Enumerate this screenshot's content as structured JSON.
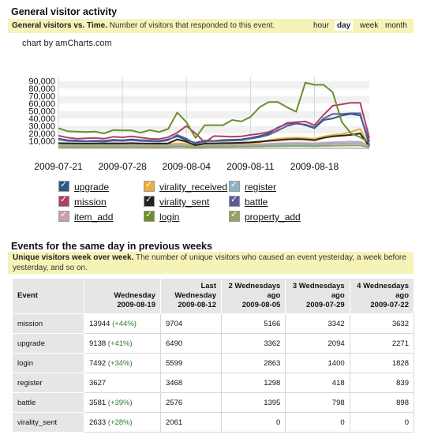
{
  "section1": {
    "title": "General visitor activity",
    "desc_bold": "General visitors vs. Time.",
    "desc": " Number of visitors that responded to this event.",
    "ranges": [
      "hour",
      "day",
      "week",
      "month"
    ],
    "selected_range": "day",
    "credit": "chart by amCharts.com"
  },
  "chart_data": {
    "type": "line",
    "y_ticks": [
      "90,000",
      "80,000",
      "70,000",
      "60,000",
      "50,000",
      "40,000",
      "30,000",
      "20,000",
      "10,000"
    ],
    "x_ticks": [
      "2009-07-21",
      "2009-07-28",
      "2009-08-04",
      "2009-08-11",
      "2009-08-18"
    ],
    "ylim": [
      0,
      95000
    ],
    "x_days": 35,
    "series": [
      {
        "name": "upgrade",
        "color": "#2b5a86",
        "values": [
          13000,
          11000,
          10500,
          9800,
          10200,
          10000,
          11500,
          10800,
          12000,
          11000,
          10500,
          9800,
          12000,
          16000,
          11000,
          7500,
          10500,
          10000,
          11200,
          11500,
          12000,
          14000,
          16500,
          20000,
          28000,
          33000,
          34000,
          31000,
          27000,
          38000,
          40000,
          44000,
          46000,
          44000,
          9138
        ]
      },
      {
        "name": "mission",
        "color": "#b04060",
        "values": [
          17000,
          14500,
          13000,
          13500,
          14000,
          13000,
          15500,
          14800,
          16000,
          14500,
          13000,
          12500,
          15000,
          21000,
          30000,
          20000,
          8000,
          16500,
          16000,
          15500,
          16000,
          18000,
          19500,
          22000,
          27000,
          34000,
          35000,
          36000,
          31000,
          45000,
          57000,
          59000,
          61000,
          61000,
          13944
        ]
      },
      {
        "name": "item_add",
        "color": "#c9a0ac",
        "values": [
          5000,
          4800,
          4500,
          4600,
          4700,
          4500,
          4900,
          4700,
          5000,
          4600,
          4400,
          4300,
          4600,
          5200,
          4800,
          3000,
          4500,
          4700,
          4800,
          4900,
          5000,
          5200,
          5500,
          6000,
          6500,
          7000,
          7200,
          7000,
          6500,
          7500,
          8000,
          8500,
          9000,
          8800,
          3000
        ]
      },
      {
        "name": "virality_received",
        "color": "#f0ad3a",
        "values": [
          6000,
          5800,
          5600,
          5500,
          5600,
          5500,
          5800,
          5700,
          6000,
          5700,
          5500,
          5400,
          5700,
          6500,
          6000,
          3500,
          5500,
          5800,
          6000,
          6200,
          6300,
          6800,
          8000,
          11000,
          13000,
          14000,
          14500,
          14000,
          13000,
          16000,
          18000,
          19000,
          22000,
          26000,
          3000
        ]
      },
      {
        "name": "virality_sent",
        "color": "#222222",
        "values": [
          7000,
          6800,
          6500,
          6400,
          6600,
          6500,
          6800,
          6700,
          7000,
          6600,
          6400,
          6300,
          6700,
          12000,
          9000,
          4000,
          6500,
          6800,
          7000,
          7200,
          7500,
          8000,
          9000,
          10000,
          11000,
          12000,
          12500,
          12000,
          11000,
          14000,
          16000,
          17000,
          18000,
          20000,
          2633
        ]
      },
      {
        "name": "login",
        "color": "#6a8f2a",
        "values": [
          27000,
          23000,
          22500,
          22000,
          22500,
          20000,
          24500,
          24000,
          24000,
          21000,
          24500,
          22000,
          26000,
          48000,
          35000,
          14000,
          31000,
          31000,
          31000,
          38000,
          36000,
          42000,
          55000,
          62000,
          62000,
          55000,
          49000,
          88000,
          85000,
          85000,
          75000,
          35000,
          20000,
          15000,
          7492
        ]
      },
      {
        "name": "register",
        "color": "#8fb4c4",
        "values": [
          3500,
          3400,
          3300,
          3200,
          3300,
          3200,
          3400,
          3300,
          3500,
          3300,
          3200,
          3100,
          3300,
          4000,
          3600,
          2000,
          3300,
          3400,
          3500,
          3600,
          3700,
          3900,
          4200,
          4600,
          5000,
          5300,
          5500,
          5300,
          5000,
          5600,
          6000,
          6300,
          6600,
          6500,
          3627
        ]
      },
      {
        "name": "battle",
        "color": "#5b5b9a",
        "values": [
          12000,
          10000,
          9500,
          9200,
          9500,
          9000,
          10500,
          10000,
          11000,
          10000,
          9500,
          9000,
          11000,
          18000,
          13000,
          6000,
          9500,
          9800,
          10000,
          10500,
          11000,
          13000,
          15000,
          18000,
          24000,
          30000,
          33000,
          32000,
          28000,
          40000,
          46000,
          46000,
          47000,
          47000,
          3581
        ]
      },
      {
        "name": "property_add",
        "color": "#9aa060",
        "values": [
          2000,
          1900,
          1800,
          1800,
          1900,
          1800,
          1900,
          1900,
          2000,
          1900,
          1800,
          1700,
          1900,
          2300,
          2100,
          1200,
          1900,
          2000,
          2000,
          2100,
          2200,
          2300,
          2500,
          2800,
          3000,
          3200,
          3300,
          3200,
          3000,
          3400,
          3600,
          3800,
          4000,
          3900,
          1500
        ]
      }
    ]
  },
  "legend": {
    "col1": [
      "upgrade",
      "mission",
      "item_add"
    ],
    "col2": [
      "virality_received",
      "virality_sent",
      "login"
    ],
    "col3": [
      "register",
      "battle",
      "property_add"
    ]
  },
  "section2": {
    "title": "Events for the same day in previous weeks",
    "desc_bold": "Unique visitors week over week.",
    "desc": " The number of unique visitors who caused an event yesterday, a week before yesterday, and so on.",
    "headers": {
      "event": "Event",
      "h1a": "Wednesday",
      "h1b": "2009-08-19",
      "h2a": "Last",
      "h2b": "Wednesday",
      "h2c": "2009-08-12",
      "h3a": "2 Wednesdays",
      "h3b": "ago",
      "h3c": "2009-08-05",
      "h4a": "3 Wednesdays",
      "h4b": "ago",
      "h4c": "2009-07-29",
      "h5a": "4 Wednesdays",
      "h5b": "ago",
      "h5c": "2009-07-22"
    },
    "rows": [
      {
        "event": "mission",
        "v0": "13944",
        "chg": "(+44%)",
        "v1": "9704",
        "v2": "5166",
        "v3": "3342",
        "v4": "3632"
      },
      {
        "event": "upgrade",
        "v0": "9138",
        "chg": "(+41%)",
        "v1": "6490",
        "v2": "3362",
        "v3": "2094",
        "v4": "2271"
      },
      {
        "event": "login",
        "v0": "7492",
        "chg": "(+34%)",
        "v1": "5599",
        "v2": "2863",
        "v3": "1400",
        "v4": "1828"
      },
      {
        "event": "register",
        "v0": "3627",
        "chg": "",
        "v1": "3468",
        "v2": "1298",
        "v3": "418",
        "v4": "839"
      },
      {
        "event": "battle",
        "v0": "3581",
        "chg": "(+39%)",
        "v1": "2576",
        "v2": "1395",
        "v3": "798",
        "v4": "898"
      },
      {
        "event": "virality_sent",
        "v0": "2633",
        "chg": "(+28%)",
        "v1": "2061",
        "v2": "0",
        "v3": "0",
        "v4": "0"
      }
    ]
  }
}
